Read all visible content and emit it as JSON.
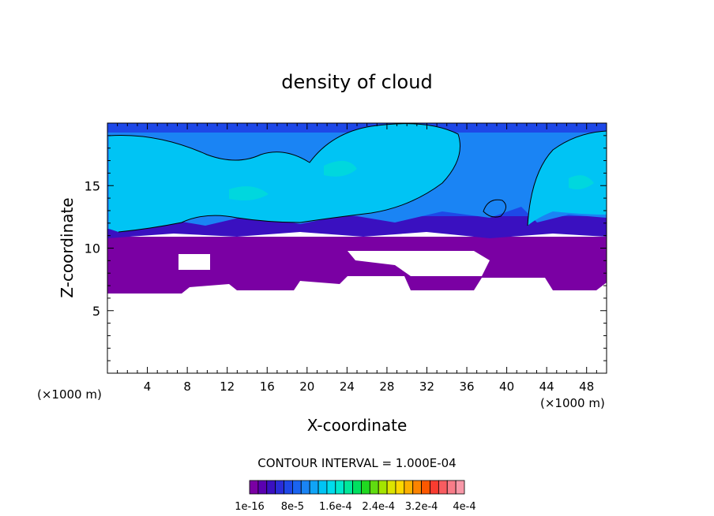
{
  "chart_data": {
    "type": "heatmap",
    "title": "density of cloud",
    "xlabel": "X-coordinate",
    "ylabel": "Z-coordinate",
    "x_unit": "(×1000 m)",
    "xlim": [
      0,
      50
    ],
    "ylim": [
      0,
      20
    ],
    "x_ticks": [
      4,
      8,
      12,
      16,
      20,
      24,
      28,
      32,
      36,
      40,
      44,
      48
    ],
    "y_ticks": [
      5,
      10,
      15
    ],
    "contour_interval": "CONTOUR INTERVAL = 1.000E-04",
    "colorbar": {
      "colors": [
        "#7a00a3",
        "#5a00b0",
        "#3a10c0",
        "#2a2cd8",
        "#1e48e8",
        "#1a64f0",
        "#1a84f4",
        "#10a4f6",
        "#00c4f4",
        "#00dcec",
        "#00e8cc",
        "#00e89a",
        "#00e060",
        "#20d820",
        "#60dc10",
        "#a4e400",
        "#dce400",
        "#fcd800",
        "#fcb000",
        "#fc8400",
        "#fc5800",
        "#f83c30",
        "#f85c60",
        "#f87c88",
        "#f898a8"
      ],
      "tick_labels": [
        "1e-16",
        "8e-5",
        "1.6e-4",
        "2.4e-4",
        "3.2e-4",
        "4e-4"
      ]
    }
  }
}
